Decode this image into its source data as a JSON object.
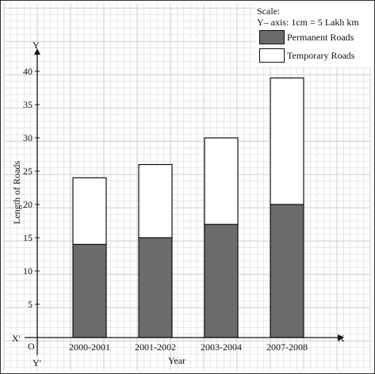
{
  "chart_data": {
    "type": "bar",
    "stacked": true,
    "categories": [
      "2000-2001",
      "2001-2002",
      "2003-2004",
      "2007-2008"
    ],
    "series": [
      {
        "name": "Permanent Roads",
        "values": [
          14,
          15,
          17,
          20
        ],
        "color": "#6b6b6b"
      },
      {
        "name": "Temporary Roads",
        "values": [
          10,
          11,
          13,
          19
        ],
        "color": "#ffffff"
      }
    ],
    "xlabel": "Year",
    "ylabel": "Length of Roads",
    "ylim": [
      0,
      45
    ],
    "yticks": [
      5,
      10,
      15,
      20,
      25,
      30,
      35,
      40
    ],
    "grid": true,
    "legend_position": "top-right",
    "axis_labels": {
      "x": "X",
      "x_neg": "X′",
      "y": "Y",
      "y_neg": "Y′",
      "origin": "O"
    },
    "scale": {
      "title": "Scale:",
      "text": "Y– axis: 1cm = 5 Lakh km"
    }
  },
  "colors": {
    "grid": "#c8c8c8",
    "axis": "#111111",
    "permanent_fill": "#6b6b6b",
    "temporary_fill": "#ffffff"
  }
}
